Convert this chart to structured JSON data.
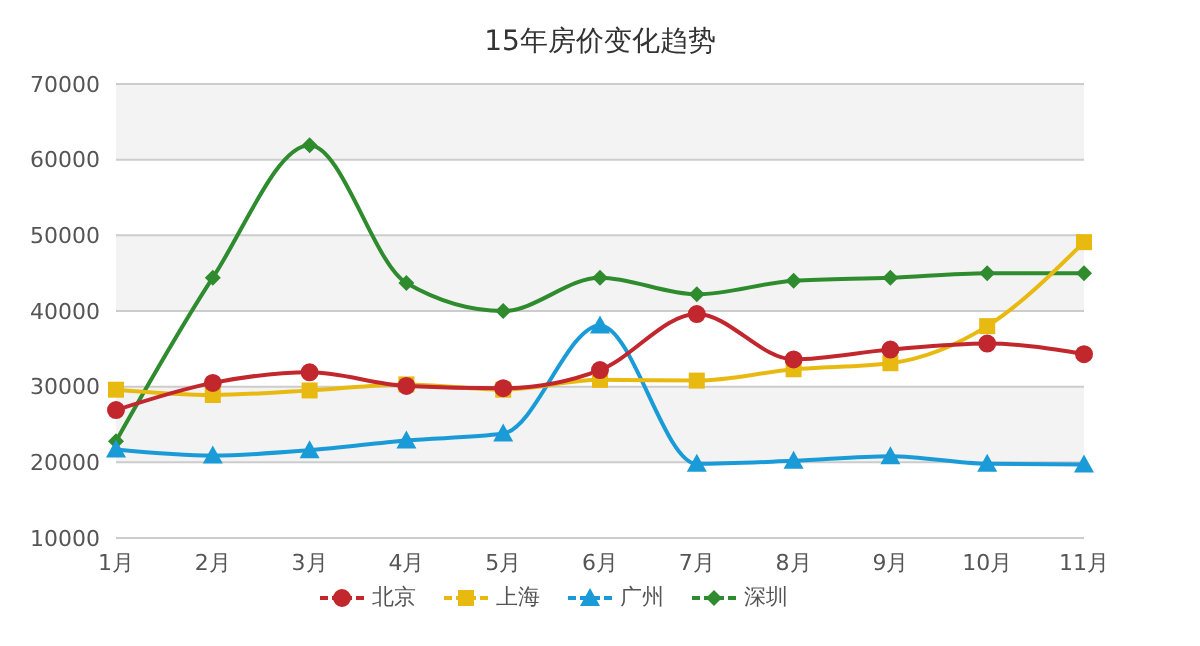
{
  "chart_data": {
    "type": "line",
    "title": "15年房价变化趋势",
    "categories": [
      "1月",
      "2月",
      "3月",
      "4月",
      "5月",
      "6月",
      "7月",
      "8月",
      "9月",
      "10月",
      "11月"
    ],
    "series": [
      {
        "name": "北京",
        "color": "#c1272d",
        "marker": "circle",
        "values": [
          26900,
          30500,
          31900,
          30100,
          29800,
          32200,
          39600,
          33600,
          34900,
          35700,
          34300
        ]
      },
      {
        "name": "上海",
        "color": "#e8b910",
        "marker": "square",
        "values": [
          29600,
          28900,
          29500,
          30300,
          29600,
          30900,
          30800,
          32300,
          33100,
          38000,
          49100
        ]
      },
      {
        "name": "广州",
        "color": "#1a9bd7",
        "marker": "triangle",
        "values": [
          21700,
          20900,
          21600,
          22900,
          23800,
          38100,
          19800,
          20200,
          20800,
          19800,
          19700
        ]
      },
      {
        "name": "深圳",
        "color": "#2e8b2e",
        "marker": "diamond",
        "values": [
          22800,
          44400,
          61900,
          43700,
          40000,
          44400,
          42200,
          44000,
          44400,
          45000,
          45000
        ]
      }
    ],
    "ylim": [
      10000,
      70000
    ],
    "yticks": [
      10000,
      20000,
      30000,
      40000,
      50000,
      60000,
      70000
    ],
    "grid": "y",
    "legend": "bottom"
  }
}
